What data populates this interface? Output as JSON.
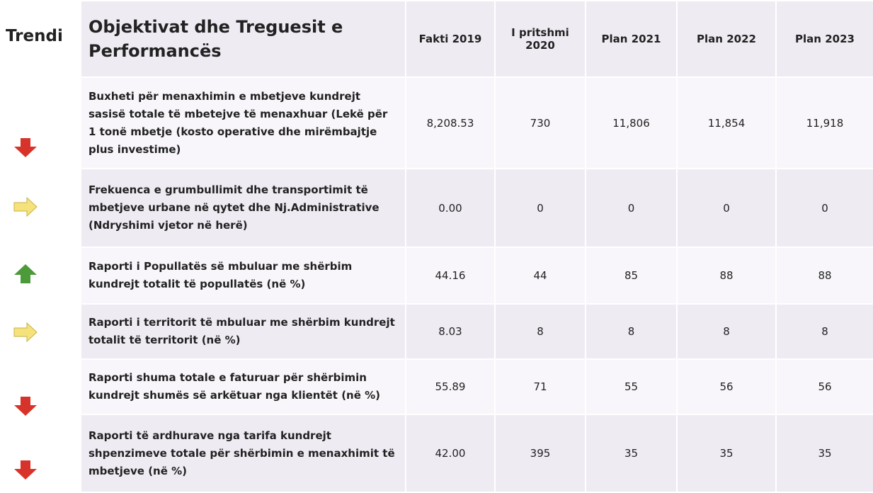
{
  "trend_label": "Trendi",
  "table": {
    "header": [
      "Objektivat dhe Treguesit e Performancës",
      "Fakti 2019",
      "I pritshmi 2020",
      "Plan 2021",
      "Plan 2022",
      "Plan 2023"
    ],
    "rows": [
      [
        "Buxheti për menaxhimin e mbetjeve kundrejt sasisë totale të mbetejve të menaxhuar (Lekë për 1 tonë mbetje (kosto operative dhe mirëmbajtje plus investime)",
        "8,208.53",
        "730",
        "11,806",
        "11,854",
        "11,918"
      ],
      [
        "Frekuenca e grumbullimit dhe transportimit të mbetjeve urbane në qytet dhe Nj.Administrative (Ndryshimi vjetor në herë)",
        "0.00",
        "0",
        "0",
        "0",
        "0"
      ],
      [
        "Raporti i Popullatës së mbuluar me shërbim kundrejt totalit të popullatës (në %)",
        "44.16",
        "44",
        "85",
        "88",
        "88"
      ],
      [
        "Raporti i territorit të mbuluar me shërbim kundrejt totalit të territorit (në %)",
        "8.03",
        "8",
        "8",
        "8",
        "8"
      ],
      [
        "Raporti shuma totale e faturuar për shërbimin kundrejt shumës së arkëtuar nga klientët (në %)",
        "55.89",
        "71",
        "55",
        "56",
        "56"
      ],
      [
        "Raporti të ardhurave nga tarifa kundrejt shpenzimeve totale për shërbimin e menaxhimit të mbetjeve (në %)",
        "42.00",
        "395",
        "35",
        "35",
        "35"
      ]
    ]
  }
}
